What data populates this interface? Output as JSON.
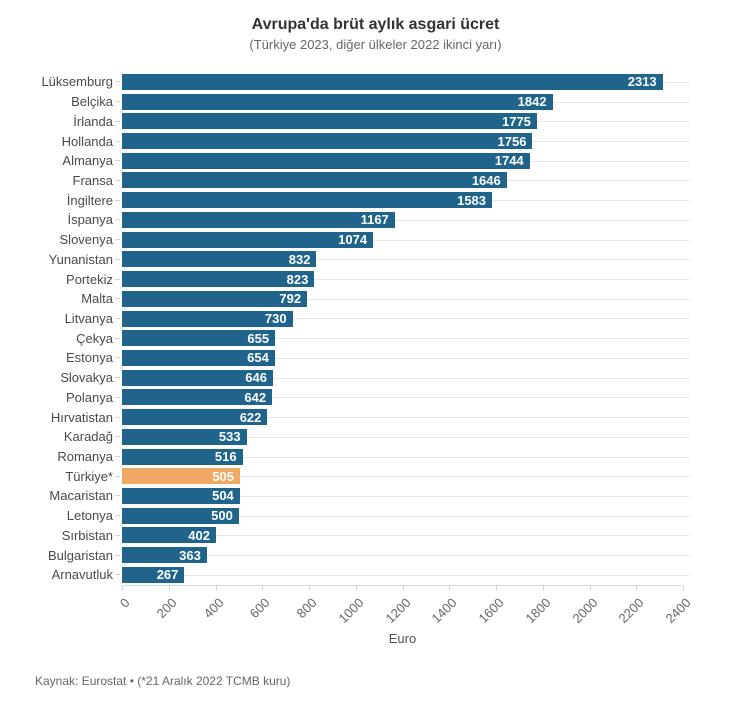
{
  "chart_data": {
    "type": "bar",
    "orientation": "horizontal",
    "title": "Avrupa'da brüt aylık asgari ücret",
    "subtitle": "(Türkiye 2023, diğer ülkeler 2022 ikinci yarı)",
    "categories": [
      "Lüksemburg",
      "Belçika",
      "İrlanda",
      "Hollanda",
      "Almanya",
      "Fransa",
      "İngiltere",
      "İspanya",
      "Slovenya",
      "Yunanistan",
      "Portekiz",
      "Malta",
      "Litvanya",
      "Çekya",
      "Estonya",
      "Slovakya",
      "Polanya",
      "Hırvatistan",
      "Karadağ",
      "Romanya",
      "Türkiye*",
      "Macaristan",
      "Letonya",
      "Sırbistan",
      "Bulgaristan",
      "Arnavutluk"
    ],
    "values": [
      2313,
      1842,
      1775,
      1756,
      1744,
      1646,
      1583,
      1167,
      1074,
      832,
      823,
      792,
      730,
      655,
      654,
      646,
      642,
      622,
      533,
      516,
      505,
      504,
      500,
      402,
      363,
      267
    ],
    "highlight_index": 20,
    "highlight_category": "Türkiye*",
    "xlabel": "Euro",
    "xlim": [
      0,
      2400
    ],
    "x_ticks": [
      "0",
      "200",
      "400",
      "600",
      "800",
      "1000",
      "1200",
      "1400",
      "1600",
      "1800",
      "2000",
      "2200",
      "2400"
    ],
    "bar_color": "#20648b",
    "highlight_color": "#f0a964",
    "value_label_color": "#ffffff",
    "gridline_color": "#e8e8e8",
    "grid": "horizontal category gridlines only",
    "legend": "none"
  },
  "footer": {
    "source": "Kaynak: Eurostat • (*21 Aralık 2022 TCMB kuru)"
  }
}
